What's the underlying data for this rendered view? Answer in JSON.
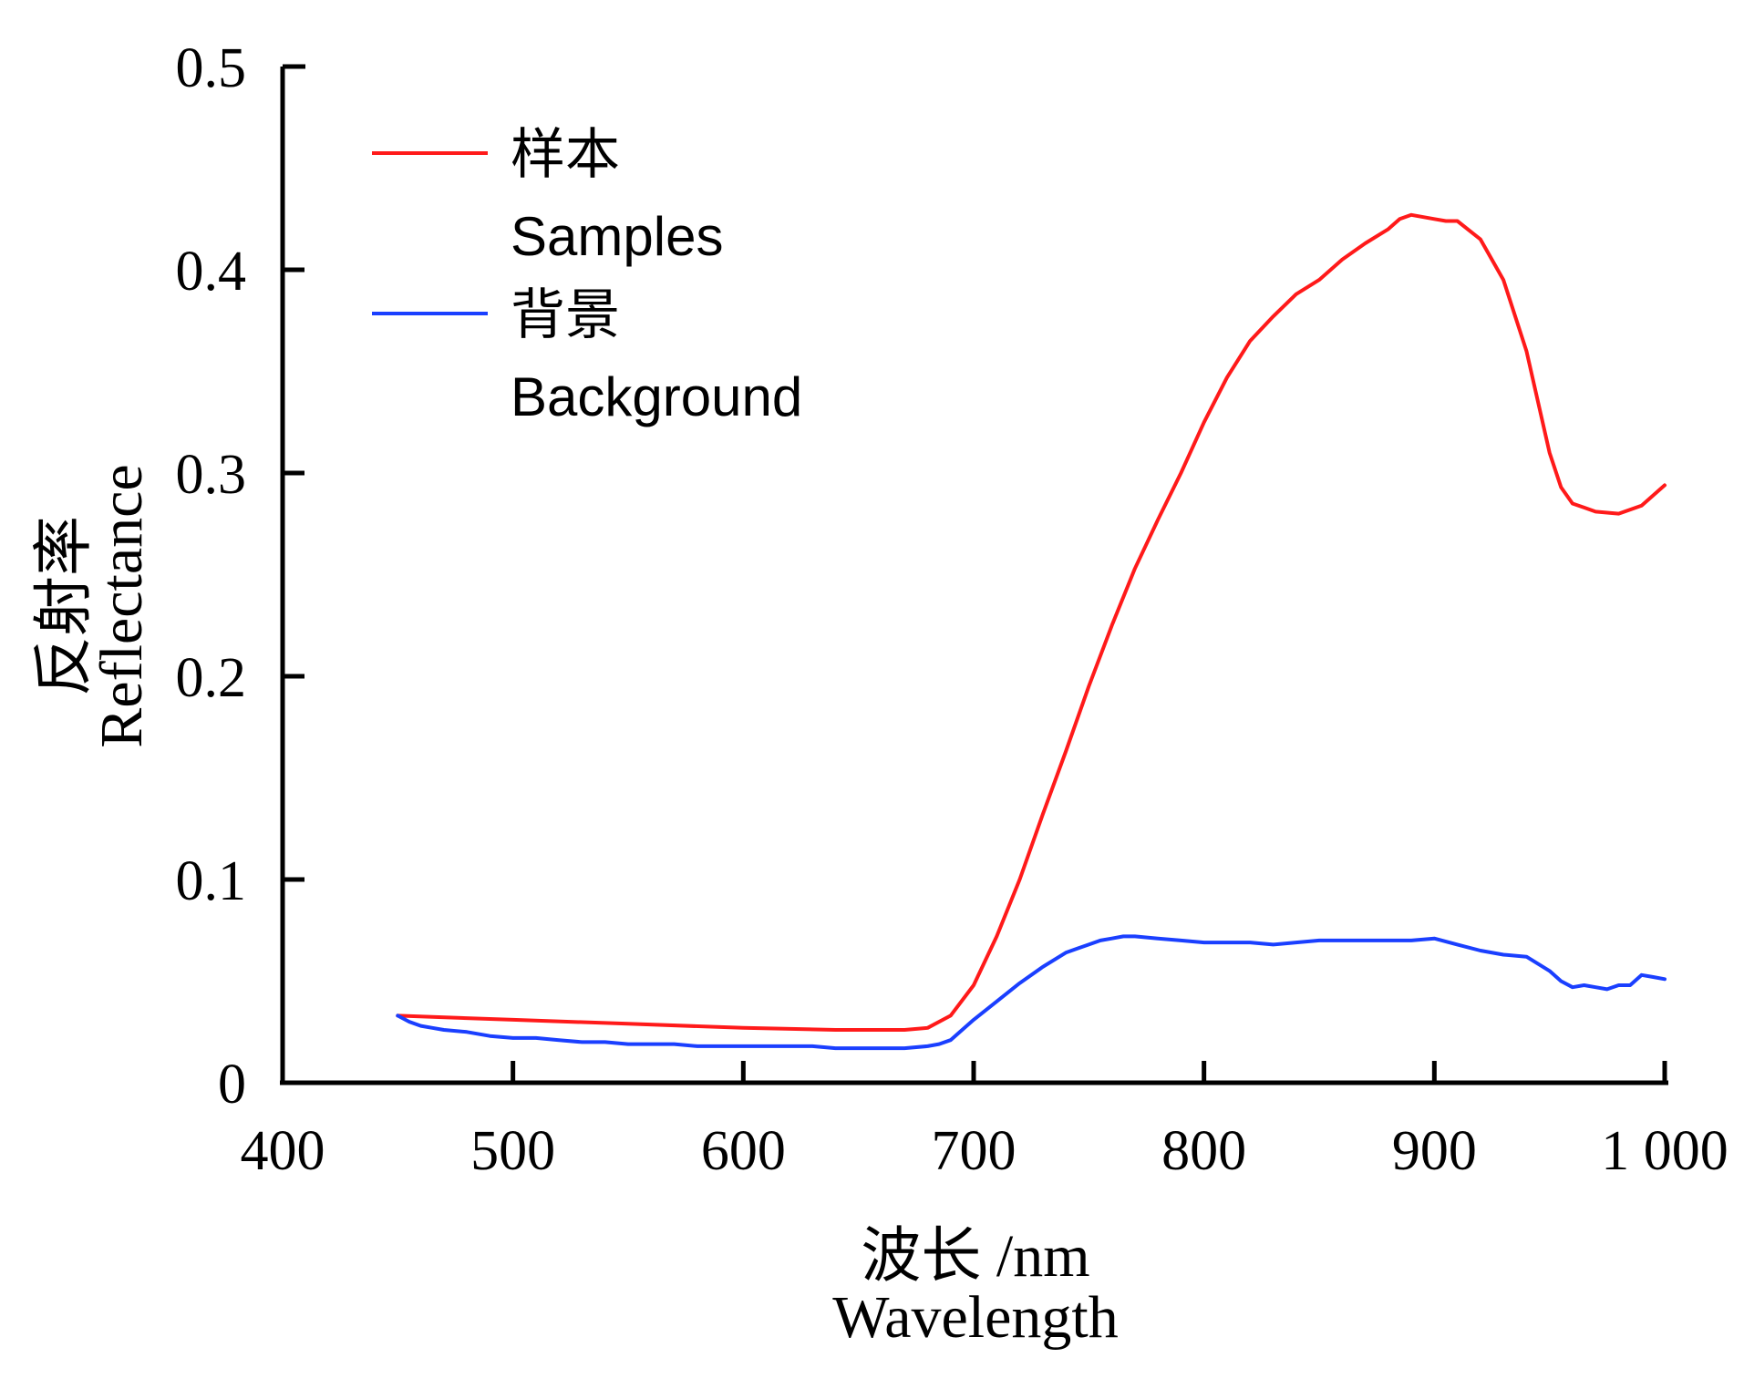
{
  "chart_data": {
    "type": "line",
    "title": "",
    "xlabel_cn": "波长 /nm",
    "xlabel_en": "Wavelength",
    "ylabel_cn": "反射率",
    "ylabel_en": "Reflectance",
    "xlim": [
      400,
      1000
    ],
    "ylim": [
      0,
      0.5
    ],
    "xticks": [
      400,
      500,
      600,
      700,
      800,
      900,
      1000
    ],
    "xtick_labels": [
      "400",
      "500",
      "600",
      "700",
      "800",
      "900",
      "1 000"
    ],
    "yticks": [
      0,
      0.1,
      0.2,
      0.3,
      0.4,
      0.5
    ],
    "ytick_labels": [
      "0",
      "0.1",
      "0.2",
      "0.3",
      "0.4",
      "0.5"
    ],
    "grid": false,
    "legend_position": "top-left",
    "series": [
      {
        "name_cn": "样本",
        "name_en": "Samples",
        "color": "#ff1a1a",
        "x": [
          450,
          500,
          550,
          600,
          640,
          670,
          680,
          690,
          700,
          710,
          720,
          730,
          740,
          750,
          760,
          770,
          780,
          790,
          800,
          810,
          820,
          830,
          840,
          850,
          860,
          870,
          880,
          885,
          890,
          900,
          905,
          910,
          920,
          930,
          940,
          950,
          955,
          960,
          965,
          970,
          980,
          990,
          1000
        ],
        "y": [
          0.033,
          0.031,
          0.029,
          0.027,
          0.026,
          0.026,
          0.027,
          0.033,
          0.048,
          0.072,
          0.1,
          0.132,
          0.163,
          0.195,
          0.225,
          0.253,
          0.277,
          0.3,
          0.325,
          0.347,
          0.365,
          0.377,
          0.388,
          0.395,
          0.405,
          0.413,
          0.42,
          0.425,
          0.427,
          0.425,
          0.424,
          0.424,
          0.415,
          0.395,
          0.36,
          0.31,
          0.293,
          0.285,
          0.283,
          0.281,
          0.28,
          0.284,
          0.294
        ]
      },
      {
        "name_cn": "背景",
        "name_en": "Background",
        "color": "#1a3fff",
        "x": [
          450,
          455,
          460,
          465,
          470,
          480,
          490,
          500,
          510,
          520,
          530,
          540,
          550,
          560,
          570,
          580,
          590,
          600,
          610,
          620,
          630,
          640,
          650,
          660,
          670,
          680,
          685,
          690,
          695,
          700,
          710,
          720,
          730,
          740,
          745,
          750,
          755,
          760,
          765,
          770,
          780,
          790,
          800,
          810,
          820,
          830,
          840,
          850,
          860,
          870,
          880,
          890,
          900,
          910,
          920,
          930,
          940,
          950,
          955,
          960,
          965,
          970,
          975,
          980,
          985,
          990,
          995,
          1000
        ],
        "y": [
          0.033,
          0.03,
          0.028,
          0.027,
          0.026,
          0.025,
          0.023,
          0.022,
          0.022,
          0.021,
          0.02,
          0.02,
          0.019,
          0.019,
          0.019,
          0.018,
          0.018,
          0.018,
          0.018,
          0.018,
          0.018,
          0.017,
          0.017,
          0.017,
          0.017,
          0.018,
          0.019,
          0.021,
          0.026,
          0.031,
          0.04,
          0.049,
          0.057,
          0.064,
          0.066,
          0.068,
          0.07,
          0.071,
          0.072,
          0.072,
          0.071,
          0.07,
          0.069,
          0.069,
          0.069,
          0.068,
          0.069,
          0.07,
          0.07,
          0.07,
          0.07,
          0.07,
          0.071,
          0.068,
          0.065,
          0.063,
          0.062,
          0.055,
          0.05,
          0.047,
          0.048,
          0.047,
          0.046,
          0.048,
          0.048,
          0.053,
          0.052,
          0.051
        ]
      }
    ]
  }
}
